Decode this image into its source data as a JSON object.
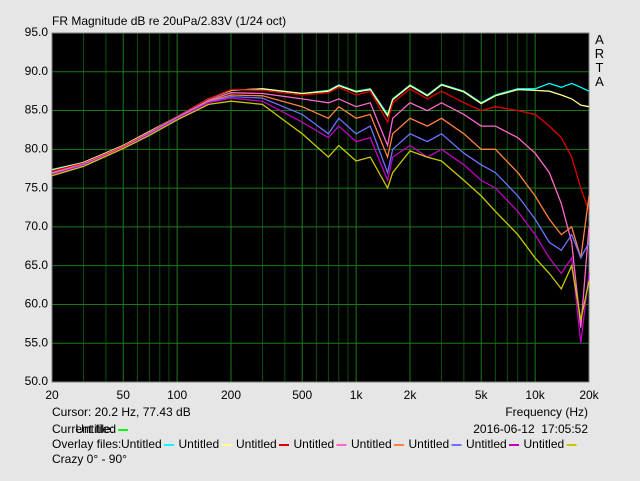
{
  "chart_data": {
    "type": "line",
    "title": "FR Magnitude dB re 20uPa/2.83V (1/24 oct)",
    "side_label": "ARTA",
    "x_label": "Frequency (Hz)",
    "cursor": "Cursor: 20.2 Hz, 77.43 dB",
    "current_file_label": "Current file:",
    "current_file": {
      "name": "Untitled",
      "color": "#00ff00"
    },
    "timestamp": "2016-06-12  17:05:52",
    "overlay_label": "Overlay files:",
    "caption": "Crazy 0° - 90°",
    "xscale": "log",
    "grid": true,
    "xlim": [
      20,
      20000
    ],
    "ylim": [
      50,
      95
    ],
    "xticks": [
      20,
      50,
      100,
      200,
      500,
      {
        "value": 1000,
        "label": "1k"
      },
      {
        "value": 2000,
        "label": "2k"
      },
      {
        "value": 5000,
        "label": "5k"
      },
      {
        "value": 10000,
        "label": "10k"
      },
      {
        "value": 20000,
        "label": "20k"
      }
    ],
    "xgrid": [
      30,
      40,
      60,
      70,
      80,
      90,
      300,
      400,
      600,
      700,
      800,
      900,
      3000,
      4000,
      6000,
      7000,
      8000,
      9000
    ],
    "yticks": [
      {
        "value": 50,
        "label": "50.0"
      },
      {
        "value": 55,
        "label": "55.0"
      },
      {
        "value": 60,
        "label": "60.0"
      },
      {
        "value": 65,
        "label": "65.0"
      },
      {
        "value": 70,
        "label": "70.0"
      },
      {
        "value": 75,
        "label": "75.0"
      },
      {
        "value": 80,
        "label": "80.0"
      },
      {
        "value": 85,
        "label": "85.0"
      },
      {
        "value": 90,
        "label": "90.0"
      },
      {
        "value": 95,
        "label": "95.0"
      }
    ],
    "x": [
      20,
      30,
      50,
      70,
      100,
      150,
      200,
      300,
      500,
      700,
      800,
      1000,
      1200,
      1500,
      1600,
      2000,
      2500,
      3000,
      4000,
      5000,
      6000,
      8000,
      10000,
      12000,
      14000,
      16000,
      18000,
      20000
    ],
    "series": [
      {
        "name": "Untitled",
        "color": "#00ffff",
        "values": [
          77.4,
          78.3,
          80.5,
          82.3,
          84.2,
          86.5,
          87.6,
          87.8,
          87.2,
          87.6,
          88.3,
          87.5,
          87.8,
          84.5,
          86.5,
          88.3,
          87,
          88.4,
          87.5,
          86,
          87,
          87.8,
          87.8,
          88.5,
          88,
          88.5,
          88,
          87.5
        ]
      },
      {
        "name": "Untitled",
        "color": "#ffff90",
        "values": [
          77.3,
          78.3,
          80.5,
          82.3,
          84.2,
          86.5,
          87.6,
          87.8,
          87.2,
          87.5,
          88.2,
          87.4,
          87.7,
          84.3,
          86.4,
          88.2,
          86.9,
          88.3,
          87.4,
          85.9,
          86.9,
          87.7,
          87.6,
          87.5,
          87,
          86.5,
          85.7,
          85.5
        ]
      },
      {
        "name": "Untitled",
        "color": "#e00000",
        "values": [
          77.2,
          78.2,
          80.4,
          82.2,
          84.2,
          86.5,
          87.7,
          87.6,
          87,
          87.3,
          88,
          87,
          87.5,
          83.5,
          86,
          87.8,
          86.5,
          87.5,
          86,
          85,
          85.5,
          85,
          84.5,
          83,
          81.5,
          79,
          75,
          72
        ]
      },
      {
        "name": "Untitled",
        "color": "#ff66cc",
        "values": [
          77,
          78.1,
          80.3,
          82.1,
          84.1,
          86.3,
          87.3,
          87.2,
          86.5,
          86,
          86.5,
          85.5,
          86,
          80.5,
          84,
          86,
          85,
          86,
          84.5,
          83,
          83,
          81.5,
          79.5,
          77,
          73,
          68,
          57,
          70
        ]
      },
      {
        "name": "Untitled",
        "color": "#ff8040",
        "values": [
          76.9,
          78,
          80.3,
          82,
          84,
          86.2,
          87,
          86.9,
          85.5,
          84,
          85.5,
          84,
          84.5,
          79,
          82,
          84,
          83,
          84,
          82,
          80,
          80,
          77,
          74,
          71,
          69,
          70,
          66,
          74
        ]
      },
      {
        "name": "Untitled",
        "color": "#7070ff",
        "values": [
          76.8,
          78,
          80.2,
          82,
          84,
          86.1,
          86.8,
          86.6,
          84.5,
          82,
          84,
          82,
          83,
          77,
          80,
          82,
          81,
          82,
          79.5,
          78,
          77,
          74,
          71,
          68,
          67,
          69,
          66,
          68
        ]
      },
      {
        "name": "Untitled",
        "color": "#c000c0",
        "values": [
          76.7,
          77.9,
          80.2,
          81.9,
          83.9,
          86,
          86.6,
          86.2,
          83.5,
          81.5,
          83,
          81,
          81.5,
          76,
          79,
          80.5,
          79,
          80,
          78,
          76,
          75,
          72,
          69,
          66,
          64,
          66,
          55,
          64
        ]
      },
      {
        "name": "Untitled",
        "color": "#c8c800",
        "values": [
          76.6,
          77.8,
          80.1,
          81.8,
          83.8,
          85.8,
          86.2,
          85.8,
          82,
          79,
          80.5,
          78.5,
          79,
          75,
          77,
          79.8,
          79,
          78.5,
          76,
          74,
          72,
          69,
          66,
          64,
          62,
          65,
          58,
          63
        ]
      }
    ]
  }
}
